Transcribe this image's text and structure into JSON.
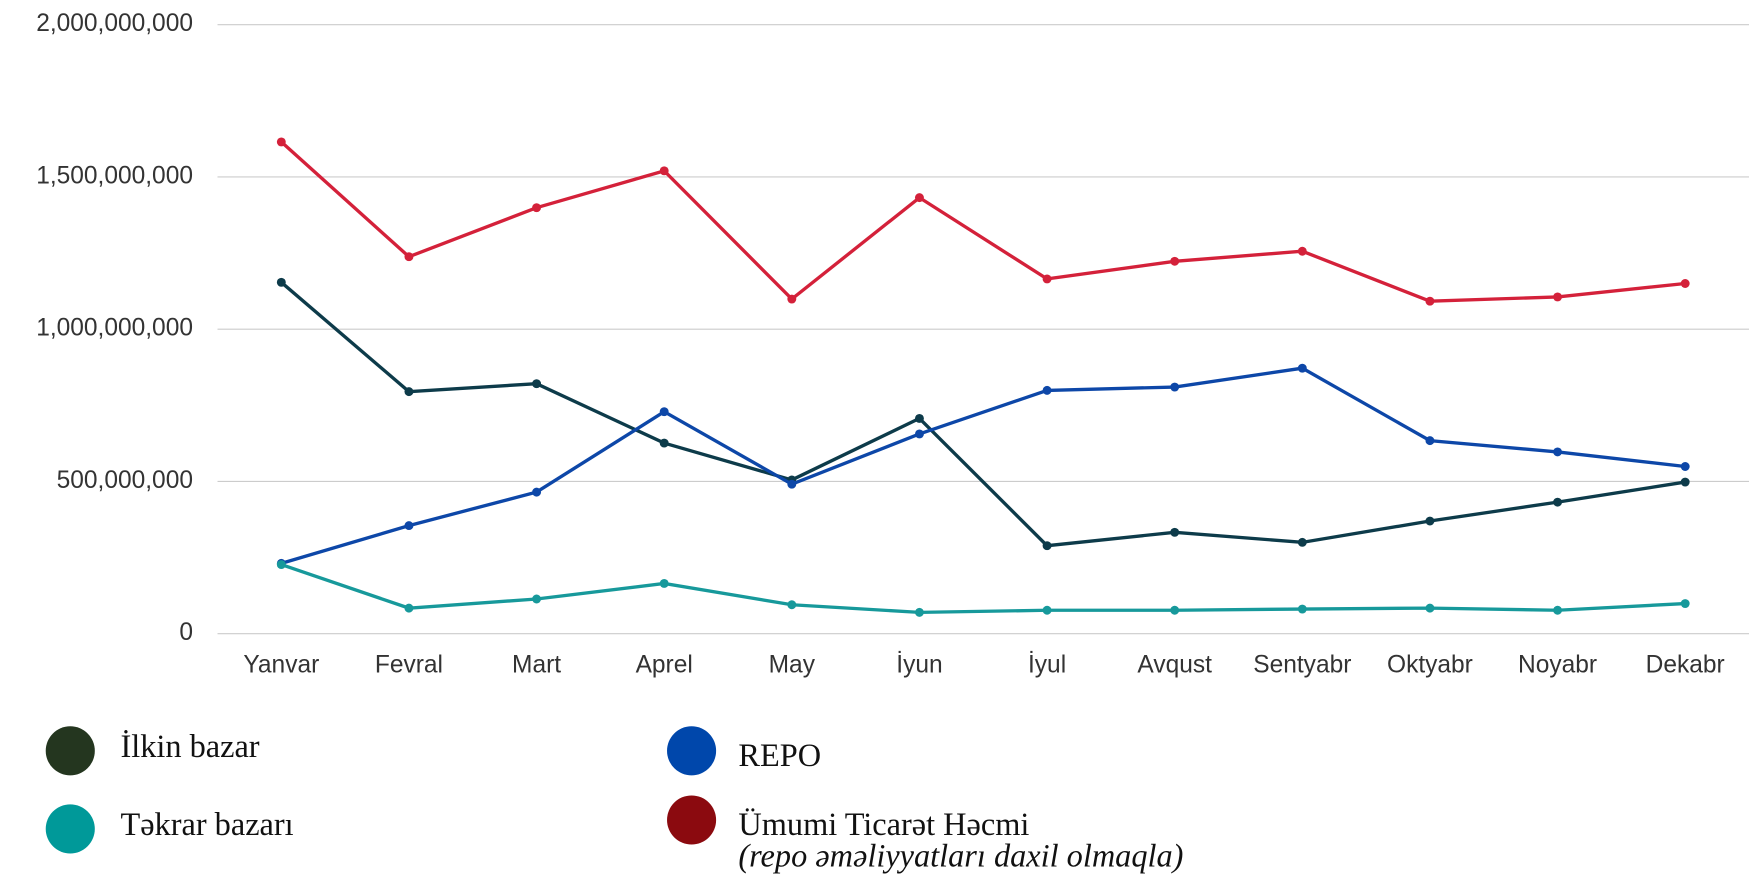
{
  "chart_data": {
    "type": "line",
    "categories": [
      "Yanvar",
      "Fevral",
      "Mart",
      "Aprel",
      "May",
      "İyun",
      "İyul",
      "Avqust",
      "Sentyabr",
      "Oktyabr",
      "Noyabr",
      "Dekabr"
    ],
    "series": [
      {
        "name": "İlkin bazar",
        "color": "#0d3b4a",
        "marker_color": "#24361f",
        "values": [
          1154000000,
          795000000,
          821000000,
          626000000,
          505000000,
          707000000,
          289000000,
          333000000,
          300000000,
          370000000,
          432000000,
          498000000
        ]
      },
      {
        "name": "REPO",
        "color": "#0d47a8",
        "marker_color": "#0047ab",
        "values": [
          231000000,
          355000000,
          465000000,
          729000000,
          491000000,
          656000000,
          799000000,
          810000000,
          872000000,
          634000000,
          597000000,
          549000000
        ]
      },
      {
        "name": "Təkrar bazarı",
        "color": "#17999b",
        "marker_color": "#009999",
        "values": [
          227000000,
          84000000,
          114000000,
          165000000,
          95000000,
          70000000,
          77000000,
          77000000,
          81000000,
          84000000,
          77000000,
          99000000
        ]
      },
      {
        "name": "Ümumi Ticarət Həcmi",
        "note": "(repo əməliyyatları daxil olmaqla)",
        "color": "#d4213a",
        "marker_color": "#8b0a0f",
        "values": [
          1615000000,
          1238000000,
          1399000000,
          1520000000,
          1099000000,
          1432000000,
          1165000000,
          1223000000,
          1256000000,
          1092000000,
          1106000000,
          1150000000
        ]
      }
    ],
    "ylim": [
      0,
      2000000000
    ],
    "yticks": [
      0,
      {
        "value": 500000000,
        "label": "500,000,000"
      },
      {
        "value": 1000000000,
        "label": "1,000,000,000"
      },
      {
        "value": 1500000000,
        "label": "1,500,000,000"
      },
      {
        "value": 2000000000,
        "label": "2,000,000,000"
      }
    ],
    "grid": true
  }
}
